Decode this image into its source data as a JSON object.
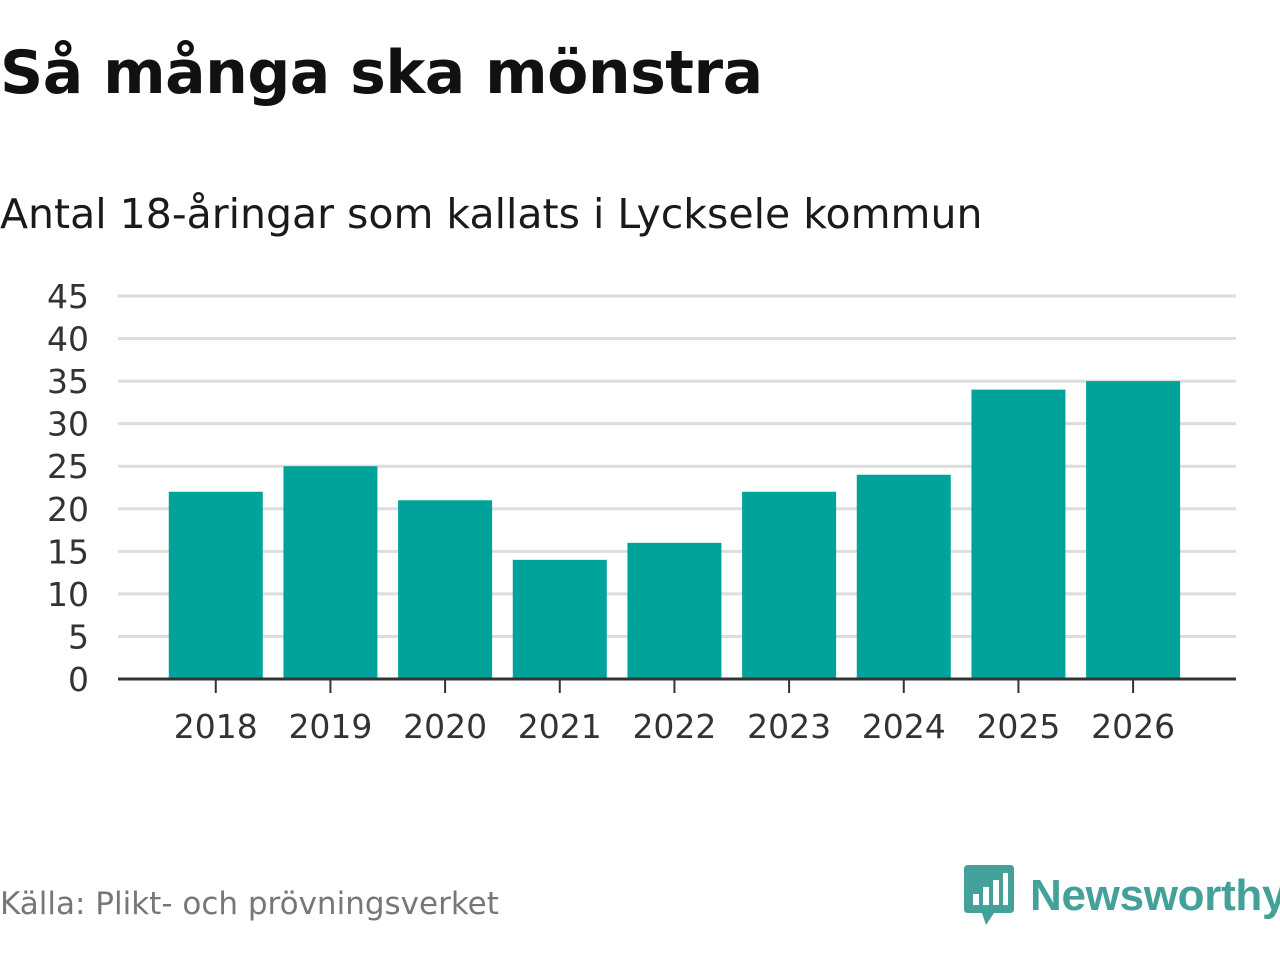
{
  "title": "Så många ska mönstra",
  "subtitle": "Antal 18-åringar som kallats i Lycksele kommun",
  "source": "Källa: Plikt- och prövningsverket",
  "brand": {
    "name": "Newsworthy",
    "icon": "newsworthy-logo-icon",
    "color": "#44a19a"
  },
  "colors": {
    "bar": "#00a39a",
    "grid": "#dddddd",
    "axis": "#333333"
  },
  "chart_data": {
    "type": "bar",
    "title": "Så många ska mönstra",
    "subtitle": "Antal 18-åringar som kallats i Lycksele kommun",
    "xlabel": "",
    "ylabel": "",
    "categories": [
      "2018",
      "2019",
      "2020",
      "2021",
      "2022",
      "2023",
      "2024",
      "2025",
      "2026"
    ],
    "values": [
      22,
      25,
      21,
      14,
      16,
      22,
      24,
      34,
      35
    ],
    "ylim": [
      0,
      45
    ],
    "yticks": [
      0,
      5,
      10,
      15,
      20,
      25,
      30,
      35,
      40,
      45
    ],
    "grid": true,
    "legend": "none"
  }
}
